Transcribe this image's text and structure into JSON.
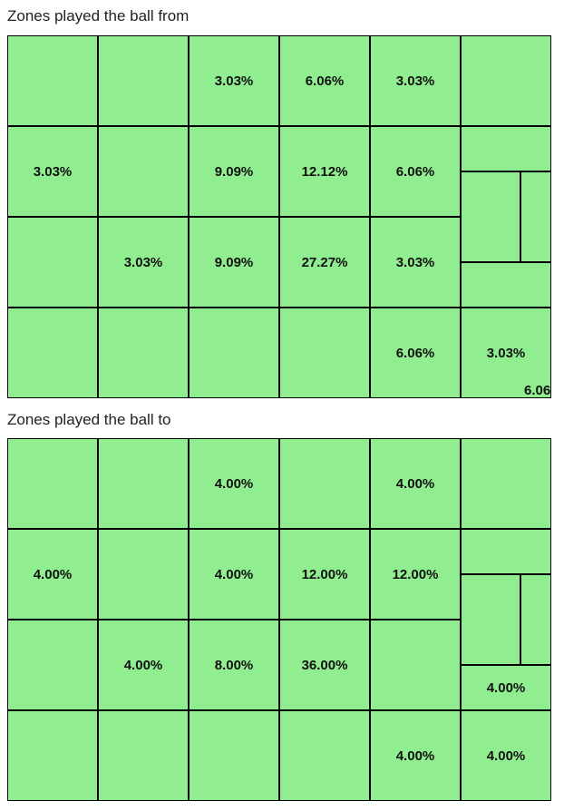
{
  "sections": [
    {
      "title": "Zones played the ball from",
      "cells": [
        [
          "",
          "",
          "3.03%",
          "6.06%",
          "3.03%",
          ""
        ],
        [
          "3.03%",
          "",
          "9.09%",
          "12.12%",
          "6.06%",
          ""
        ],
        [
          "",
          "3.03%",
          "9.09%",
          "27.27%",
          "3.03%",
          ""
        ],
        [
          "",
          "",
          "",
          "",
          "6.06%",
          "3.03%"
        ]
      ],
      "overflow_label": "6.06"
    },
    {
      "title": "Zones played the ball to",
      "cells": [
        [
          "",
          "",
          "4.00%",
          "",
          "4.00%",
          ""
        ],
        [
          "4.00%",
          "",
          "4.00%",
          "12.00%",
          "12.00%",
          ""
        ],
        [
          "",
          "4.00%",
          "8.00%",
          "36.00%",
          "",
          "4.00%"
        ],
        [
          "",
          "",
          "",
          "",
          "4.00%",
          "4.00%"
        ]
      ]
    }
  ],
  "colors": {
    "pitch": "#90ee90",
    "lines": "#000000"
  }
}
